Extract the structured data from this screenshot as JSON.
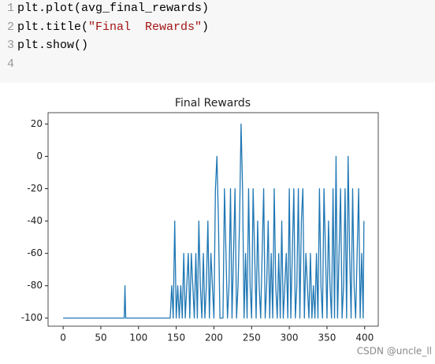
{
  "code": {
    "lines": [
      {
        "number": 1,
        "segments": [
          "plt.plot(avg_final_rewards)"
        ]
      },
      {
        "number": 2,
        "segments": [
          "plt.title(",
          "\"Final  Rewards\"",
          ")"
        ]
      },
      {
        "number": 3,
        "segments": [
          "plt.show()"
        ]
      },
      {
        "number": 4,
        "segments": []
      }
    ]
  },
  "chart_data": {
    "type": "line",
    "title": "Final Rewards",
    "color": "#1f77b4",
    "x": [
      0,
      81,
      82,
      83,
      142,
      144,
      146,
      148,
      150,
      152,
      154,
      156,
      158,
      160,
      162,
      164,
      166,
      168,
      170,
      172,
      174,
      176,
      178,
      180,
      182,
      184,
      186,
      188,
      190,
      192,
      194,
      196,
      198,
      200,
      202,
      204,
      206,
      208,
      210,
      212,
      214,
      216,
      218,
      220,
      222,
      224,
      226,
      228,
      230,
      232,
      234,
      236,
      238,
      240,
      242,
      244,
      246,
      248,
      250,
      252,
      254,
      256,
      258,
      260,
      262,
      264,
      266,
      268,
      270,
      272,
      274,
      276,
      278,
      280,
      282,
      284,
      286,
      288,
      290,
      292,
      294,
      296,
      298,
      300,
      302,
      304,
      306,
      308,
      310,
      312,
      314,
      316,
      318,
      320,
      322,
      324,
      326,
      328,
      330,
      332,
      334,
      336,
      338,
      340,
      342,
      344,
      346,
      348,
      350,
      352,
      354,
      356,
      358,
      360,
      362,
      364,
      366,
      368,
      370,
      372,
      374,
      376,
      378,
      380,
      382,
      384,
      386,
      388,
      390,
      392,
      394,
      396,
      398,
      399
    ],
    "values": [
      -100,
      -100,
      -80,
      -100,
      -100,
      -80,
      -100,
      -40,
      -100,
      -80,
      -100,
      -80,
      -100,
      -60,
      -100,
      -80,
      -60,
      -100,
      -60,
      -80,
      -100,
      -60,
      -100,
      -40,
      -80,
      -100,
      -60,
      -100,
      -80,
      -40,
      -100,
      -60,
      -80,
      -100,
      -20,
      0,
      -40,
      -100,
      -100,
      -100,
      -20,
      -60,
      -100,
      -80,
      -20,
      -100,
      -60,
      -20,
      -100,
      -80,
      -40,
      20,
      -20,
      -100,
      -60,
      -100,
      -20,
      -80,
      -100,
      -20,
      -60,
      -100,
      -40,
      -80,
      -100,
      -60,
      -20,
      -100,
      -80,
      -40,
      -100,
      -60,
      -100,
      -20,
      -80,
      -100,
      -60,
      -100,
      -40,
      -100,
      -80,
      -60,
      -100,
      -20,
      -100,
      -60,
      -20,
      -100,
      -80,
      -20,
      -100,
      -40,
      -20,
      -100,
      -60,
      -80,
      -100,
      -60,
      -100,
      -80,
      -100,
      -60,
      -100,
      -20,
      -80,
      -100,
      -20,
      -60,
      -100,
      -40,
      -80,
      -100,
      -20,
      -100,
      0,
      -100,
      -60,
      -20,
      -100,
      -80,
      -20,
      -100,
      0,
      -60,
      -100,
      -20,
      -80,
      -100,
      -60,
      -20,
      -100,
      -60,
      -100,
      -40
    ],
    "xlim": [
      -20,
      418
    ],
    "ylim": [
      -105,
      27
    ],
    "xticks": [
      0,
      50,
      100,
      150,
      200,
      250,
      300,
      350,
      400
    ],
    "yticks": [
      20,
      0,
      -20,
      -40,
      -60,
      -80,
      -100
    ]
  },
  "watermark": "CSDN @uncle_ll"
}
